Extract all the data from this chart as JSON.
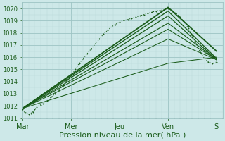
{
  "bg_color": "#cde8e8",
  "grid_major_color": "#9dc4c4",
  "grid_minor_color": "#b8d8d8",
  "line_color": "#1a5c1a",
  "x_labels": [
    "Mar",
    "Mer",
    "Jeu",
    "Ven",
    "S"
  ],
  "x_ticks": [
    0,
    24,
    48,
    72,
    96
  ],
  "x_max": 99,
  "y_min": 1011.0,
  "y_max": 1020.5,
  "y_ticks": [
    1011,
    1012,
    1013,
    1014,
    1015,
    1016,
    1017,
    1018,
    1019,
    1020
  ],
  "xlabel": "Pression niveau de la mer( hPa )",
  "xlabel_fontsize": 8,
  "ytick_fontsize": 6,
  "xtick_fontsize": 7,
  "dotted_line": {
    "x": [
      0,
      1,
      2,
      3,
      4,
      5,
      6,
      7,
      8,
      9,
      10,
      12,
      14,
      16,
      18,
      20,
      22,
      24,
      26,
      28,
      30,
      32,
      34,
      36,
      38,
      40,
      42,
      44,
      46,
      48,
      50,
      52,
      54,
      56,
      58,
      60,
      62,
      64,
      66,
      68,
      70,
      72,
      74,
      76,
      78,
      80,
      82,
      84,
      86,
      88,
      90,
      92,
      94,
      96
    ],
    "y": [
      1011.7,
      1011.5,
      1011.4,
      1011.3,
      1011.4,
      1011.5,
      1011.7,
      1011.9,
      1012.0,
      1012.1,
      1012.2,
      1012.4,
      1012.7,
      1013.0,
      1013.3,
      1013.7,
      1014.1,
      1014.5,
      1015.0,
      1015.5,
      1015.9,
      1016.3,
      1016.7,
      1017.1,
      1017.5,
      1017.9,
      1018.2,
      1018.5,
      1018.7,
      1018.9,
      1019.0,
      1019.1,
      1019.2,
      1019.3,
      1019.4,
      1019.5,
      1019.6,
      1019.7,
      1019.8,
      1019.85,
      1019.9,
      1020.0,
      1019.85,
      1019.6,
      1019.3,
      1018.9,
      1018.4,
      1017.8,
      1017.1,
      1016.4,
      1015.9,
      1015.6,
      1015.5,
      1015.6
    ]
  },
  "solid_lines": [
    {
      "x": [
        0,
        72,
        96
      ],
      "y": [
        1011.8,
        1020.1,
        1016.5
      ],
      "lw": 1.3
    },
    {
      "x": [
        0,
        72,
        96
      ],
      "y": [
        1011.8,
        1019.8,
        1015.9
      ],
      "lw": 1.0
    },
    {
      "x": [
        0,
        72,
        96
      ],
      "y": [
        1011.8,
        1019.4,
        1015.8
      ],
      "lw": 0.9
    },
    {
      "x": [
        0,
        72,
        96
      ],
      "y": [
        1011.8,
        1018.8,
        1015.8
      ],
      "lw": 0.85
    },
    {
      "x": [
        0,
        72,
        96
      ],
      "y": [
        1011.8,
        1018.3,
        1015.8
      ],
      "lw": 0.8
    },
    {
      "x": [
        0,
        72,
        96
      ],
      "y": [
        1011.8,
        1017.5,
        1015.8
      ],
      "lw": 0.75
    },
    {
      "x": [
        0,
        72,
        96
      ],
      "y": [
        1011.8,
        1015.5,
        1016.0
      ],
      "lw": 0.75
    }
  ]
}
